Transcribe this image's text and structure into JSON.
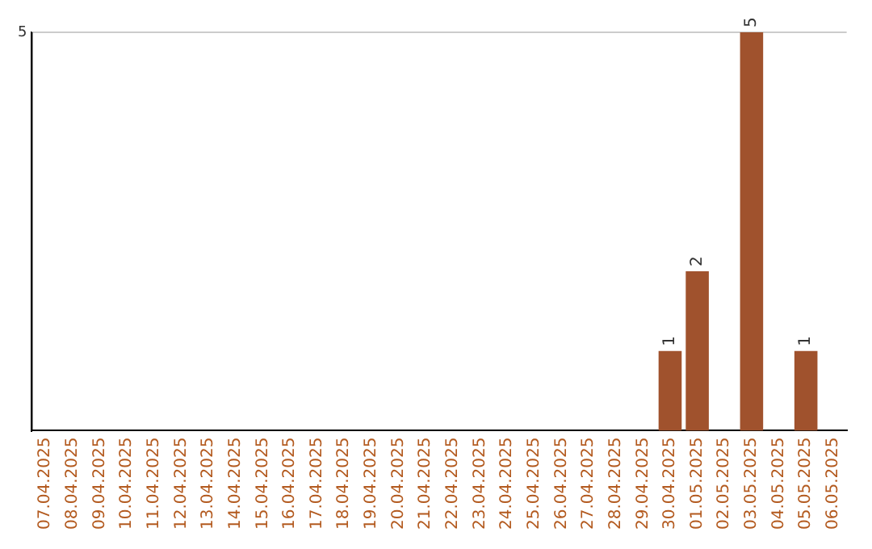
{
  "chart_data": {
    "type": "bar",
    "categories": [
      "07.04.2025",
      "08.04.2025",
      "09.04.2025",
      "10.04.2025",
      "11.04.2025",
      "12.04.2025",
      "13.04.2025",
      "14.04.2025",
      "15.04.2025",
      "16.04.2025",
      "17.04.2025",
      "18.04.2025",
      "19.04.2025",
      "20.04.2025",
      "21.04.2025",
      "22.04.2025",
      "23.04.2025",
      "24.04.2025",
      "25.04.2025",
      "26.04.2025",
      "27.04.2025",
      "28.04.2025",
      "29.04.2025",
      "30.04.2025",
      "01.05.2025",
      "02.05.2025",
      "03.05.2025",
      "04.05.2025",
      "05.05.2025",
      "06.05.2025"
    ],
    "values": [
      null,
      null,
      null,
      null,
      null,
      null,
      null,
      null,
      null,
      null,
      null,
      null,
      null,
      null,
      null,
      null,
      null,
      null,
      null,
      null,
      null,
      null,
      null,
      1,
      2,
      null,
      5,
      null,
      1,
      null
    ],
    "color": "#a0522d",
    "ylim": [
      0,
      5
    ],
    "yticks": [
      5
    ],
    "ref_lines": [
      {
        "axis": "y",
        "value": 5,
        "color": "#cccccc"
      }
    ],
    "data_labels": true,
    "legend": false
  }
}
